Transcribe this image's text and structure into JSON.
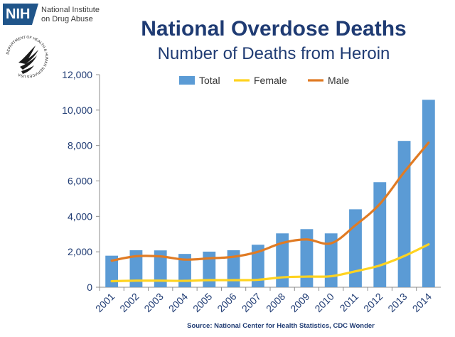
{
  "header": {
    "nih_badge": "NIH",
    "nih_name_line1": "National Institute",
    "nih_name_line2": "on Drug Abuse",
    "seal_text": "DEPARTMENT OF HEALTH & HUMAN SERVICES USA",
    "seal_icon": "hhs-eagle-seal-icon"
  },
  "colors": {
    "total": "#5b9bd5",
    "female": "#ffd320",
    "male": "#e07b24",
    "title": "#1f3b73",
    "axis_text": "#1f3b73"
  },
  "chart_data": {
    "type": "bar",
    "title": "National Overdose Deaths",
    "subtitle": "Number of Deaths from Heroin",
    "xlabel": "",
    "ylabel": "",
    "ylim": [
      0,
      12000
    ],
    "yticks": [
      0,
      2000,
      4000,
      6000,
      8000,
      10000,
      12000
    ],
    "ytick_labels": [
      "0",
      "2,000",
      "4,000",
      "6,000",
      "8,000",
      "10,000",
      "12,000"
    ],
    "grid": false,
    "legend_position": "top",
    "categories": [
      "2001",
      "2002",
      "2003",
      "2004",
      "2005",
      "2006",
      "2007",
      "2008",
      "2009",
      "2010",
      "2011",
      "2012",
      "2013",
      "2014"
    ],
    "series": [
      {
        "name": "Total",
        "type": "bar",
        "values": [
          1780,
          2090,
          2080,
          1880,
          2010,
          2090,
          2400,
          3040,
          3280,
          3040,
          4400,
          5930,
          8260,
          10580
        ]
      },
      {
        "name": "Female",
        "type": "line",
        "values": [
          340,
          370,
          370,
          360,
          400,
          400,
          420,
          560,
          600,
          620,
          900,
          1230,
          1760,
          2420
        ]
      },
      {
        "name": "Male",
        "type": "line",
        "values": [
          1500,
          1750,
          1740,
          1560,
          1630,
          1720,
          2000,
          2500,
          2700,
          2480,
          3500,
          4700,
          6500,
          8160
        ]
      }
    ],
    "source": "Source: National Center for Health Statistics, CDC Wonder"
  }
}
